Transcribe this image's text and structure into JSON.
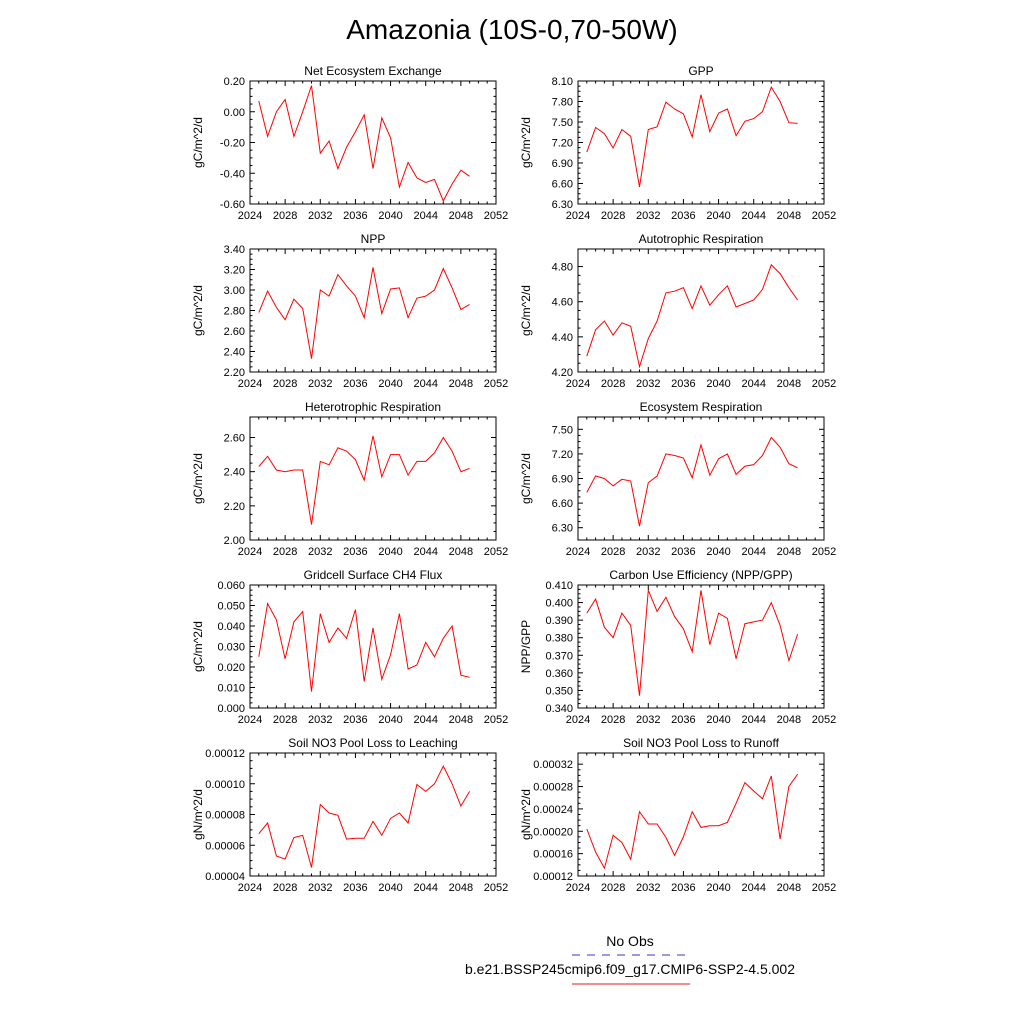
{
  "page_title": "Amazonia (10S-0,70-50W)",
  "legend": {
    "obs_label": "No Obs",
    "obs_color": "#3333cc",
    "model_label": "b.e21.BSSP245cmip6.f09_g17.CMIP6-SSP2-4.5.002",
    "model_color": "#e41a1c"
  },
  "line_color": "#ff0000",
  "chart_data": [
    {
      "type": "line",
      "title": "Net Ecosystem Exchange",
      "ylabel": "gC/m^2/d",
      "xlim": [
        2024,
        2052
      ],
      "xticks": [
        2024,
        2028,
        2032,
        2036,
        2040,
        2044,
        2048,
        2052
      ],
      "ylim": [
        -0.6,
        0.2
      ],
      "yticks": [
        "-0.60",
        "-0.40",
        "-0.20",
        "0.00",
        "0.20"
      ],
      "x": [
        2025,
        2026,
        2027,
        2028,
        2029,
        2030,
        2031,
        2032,
        2033,
        2034,
        2035,
        2036,
        2037,
        2038,
        2039,
        2040,
        2041,
        2042,
        2043,
        2044,
        2045,
        2046,
        2047,
        2048,
        2049
      ],
      "values": [
        0.07,
        -0.16,
        0.0,
        0.08,
        -0.16,
        0.0,
        0.17,
        -0.27,
        -0.19,
        -0.37,
        -0.23,
        -0.13,
        -0.02,
        -0.37,
        -0.04,
        -0.17,
        -0.49,
        -0.33,
        -0.43,
        -0.46,
        -0.44,
        -0.58,
        -0.47,
        -0.38,
        -0.42
      ]
    },
    {
      "type": "line",
      "title": "GPP",
      "ylabel": "gC/m^2/d",
      "xlim": [
        2024,
        2052
      ],
      "xticks": [
        2024,
        2028,
        2032,
        2036,
        2040,
        2044,
        2048,
        2052
      ],
      "ylim": [
        6.3,
        8.1
      ],
      "yticks": [
        "6.30",
        "6.60",
        "6.90",
        "7.20",
        "7.50",
        "7.80",
        "8.10"
      ],
      "x": [
        2025,
        2026,
        2027,
        2028,
        2029,
        2030,
        2031,
        2032,
        2033,
        2034,
        2035,
        2036,
        2037,
        2038,
        2039,
        2040,
        2041,
        2042,
        2043,
        2044,
        2045,
        2046,
        2047,
        2048,
        2049
      ],
      "values": [
        7.06,
        7.42,
        7.33,
        7.12,
        7.39,
        7.29,
        6.55,
        7.39,
        7.43,
        7.79,
        7.69,
        7.62,
        7.28,
        7.9,
        7.36,
        7.63,
        7.69,
        7.3,
        7.51,
        7.55,
        7.65,
        8.01,
        7.8,
        7.49,
        7.48
      ]
    },
    {
      "type": "line",
      "title": "NPP",
      "ylabel": "gC/m^2/d",
      "xlim": [
        2024,
        2052
      ],
      "xticks": [
        2024,
        2028,
        2032,
        2036,
        2040,
        2044,
        2048,
        2052
      ],
      "ylim": [
        2.2,
        3.4
      ],
      "yticks": [
        "2.20",
        "2.40",
        "2.60",
        "2.80",
        "3.00",
        "3.20",
        "3.40"
      ],
      "x": [
        2025,
        2026,
        2027,
        2028,
        2029,
        2030,
        2031,
        2032,
        2033,
        2034,
        2035,
        2036,
        2037,
        2038,
        2039,
        2040,
        2041,
        2042,
        2043,
        2044,
        2045,
        2046,
        2047,
        2048,
        2049
      ],
      "values": [
        2.78,
        2.99,
        2.83,
        2.71,
        2.91,
        2.82,
        2.33,
        3.0,
        2.94,
        3.15,
        3.04,
        2.94,
        2.73,
        3.22,
        2.77,
        3.01,
        3.02,
        2.73,
        2.92,
        2.94,
        3.0,
        3.21,
        3.02,
        2.81,
        2.86
      ]
    },
    {
      "type": "line",
      "title": "Autotrophic Respiration",
      "ylabel": "gC/m^2/d",
      "xlim": [
        2024,
        2052
      ],
      "xticks": [
        2024,
        2028,
        2032,
        2036,
        2040,
        2044,
        2048,
        2052
      ],
      "ylim": [
        4.2,
        4.9
      ],
      "yticks": [
        "4.20",
        "4.40",
        "4.60",
        "4.80"
      ],
      "x": [
        2025,
        2026,
        2027,
        2028,
        2029,
        2030,
        2031,
        2032,
        2033,
        2034,
        2035,
        2036,
        2037,
        2038,
        2039,
        2040,
        2041,
        2042,
        2043,
        2044,
        2045,
        2046,
        2047,
        2048,
        2049
      ],
      "values": [
        4.29,
        4.44,
        4.49,
        4.41,
        4.48,
        4.46,
        4.23,
        4.39,
        4.49,
        4.65,
        4.66,
        4.68,
        4.56,
        4.69,
        4.58,
        4.64,
        4.69,
        4.57,
        4.59,
        4.61,
        4.67,
        4.81,
        4.76,
        4.68,
        4.61
      ]
    },
    {
      "type": "line",
      "title": "Heterotrophic Respiration",
      "ylabel": "gC/m^2/d",
      "xlim": [
        2024,
        2052
      ],
      "xticks": [
        2024,
        2028,
        2032,
        2036,
        2040,
        2044,
        2048,
        2052
      ],
      "ylim": [
        2.0,
        2.72
      ],
      "yticks": [
        "2.00",
        "2.20",
        "2.40",
        "2.60"
      ],
      "x": [
        2025,
        2026,
        2027,
        2028,
        2029,
        2030,
        2031,
        2032,
        2033,
        2034,
        2035,
        2036,
        2037,
        2038,
        2039,
        2040,
        2041,
        2042,
        2043,
        2044,
        2045,
        2046,
        2047,
        2048,
        2049
      ],
      "values": [
        2.43,
        2.49,
        2.41,
        2.4,
        2.41,
        2.41,
        2.09,
        2.46,
        2.44,
        2.54,
        2.52,
        2.47,
        2.35,
        2.61,
        2.37,
        2.5,
        2.5,
        2.38,
        2.46,
        2.46,
        2.51,
        2.6,
        2.52,
        2.4,
        2.42
      ]
    },
    {
      "type": "line",
      "title": "Ecosystem Respiration",
      "ylabel": "gC/m^2/d",
      "xlim": [
        2024,
        2052
      ],
      "xticks": [
        2024,
        2028,
        2032,
        2036,
        2040,
        2044,
        2048,
        2052
      ],
      "ylim": [
        6.15,
        7.65
      ],
      "yticks": [
        "6.30",
        "6.60",
        "6.90",
        "7.20",
        "7.50"
      ],
      "x": [
        2025,
        2026,
        2027,
        2028,
        2029,
        2030,
        2031,
        2032,
        2033,
        2034,
        2035,
        2036,
        2037,
        2038,
        2039,
        2040,
        2041,
        2042,
        2043,
        2044,
        2045,
        2046,
        2047,
        2048,
        2049
      ],
      "values": [
        6.73,
        6.93,
        6.9,
        6.81,
        6.89,
        6.87,
        6.32,
        6.85,
        6.93,
        7.2,
        7.18,
        7.15,
        6.91,
        7.31,
        6.94,
        7.14,
        7.2,
        6.95,
        7.05,
        7.07,
        7.18,
        7.4,
        7.28,
        7.08,
        7.03
      ]
    },
    {
      "type": "line",
      "title": "Gridcell Surface CH4 Flux",
      "ylabel": "gC/m^2/d",
      "xlim": [
        2024,
        2052
      ],
      "xticks": [
        2024,
        2028,
        2032,
        2036,
        2040,
        2044,
        2048,
        2052
      ],
      "ylim": [
        0.0,
        0.06
      ],
      "yticks": [
        "0.000",
        "0.010",
        "0.020",
        "0.030",
        "0.040",
        "0.050",
        "0.060"
      ],
      "x": [
        2025,
        2026,
        2027,
        2028,
        2029,
        2030,
        2031,
        2032,
        2033,
        2034,
        2035,
        2036,
        2037,
        2038,
        2039,
        2040,
        2041,
        2042,
        2043,
        2044,
        2045,
        2046,
        2047,
        2048,
        2049
      ],
      "values": [
        0.025,
        0.051,
        0.043,
        0.024,
        0.042,
        0.047,
        0.008,
        0.046,
        0.032,
        0.039,
        0.034,
        0.048,
        0.013,
        0.039,
        0.014,
        0.026,
        0.046,
        0.019,
        0.021,
        0.032,
        0.025,
        0.034,
        0.04,
        0.016,
        0.015
      ]
    },
    {
      "type": "line",
      "title": "Carbon Use Efficiency (NPP/GPP)",
      "ylabel": "NPP/GPP",
      "xlim": [
        2024,
        2052
      ],
      "xticks": [
        2024,
        2028,
        2032,
        2036,
        2040,
        2044,
        2048,
        2052
      ],
      "ylim": [
        0.34,
        0.41
      ],
      "yticks": [
        "0.340",
        "0.350",
        "0.360",
        "0.370",
        "0.380",
        "0.390",
        "0.400",
        "0.410"
      ],
      "x": [
        2025,
        2026,
        2027,
        2028,
        2029,
        2030,
        2031,
        2032,
        2033,
        2034,
        2035,
        2036,
        2037,
        2038,
        2039,
        2040,
        2041,
        2042,
        2043,
        2044,
        2045,
        2046,
        2047,
        2048,
        2049
      ],
      "values": [
        0.394,
        0.402,
        0.386,
        0.38,
        0.394,
        0.387,
        0.347,
        0.407,
        0.395,
        0.403,
        0.392,
        0.385,
        0.372,
        0.407,
        0.376,
        0.394,
        0.391,
        0.368,
        0.388,
        0.389,
        0.39,
        0.4,
        0.387,
        0.367,
        0.382
      ]
    },
    {
      "type": "line",
      "title": "Soil NO3 Pool Loss to Leaching",
      "ylabel": "gN/m^2/d",
      "xlim": [
        2024,
        2052
      ],
      "xticks": [
        2024,
        2028,
        2032,
        2036,
        2040,
        2044,
        2048,
        2052
      ],
      "ylim": [
        4e-05,
        0.00012
      ],
      "yticks": [
        "0.00004",
        "0.00006",
        "0.00008",
        "0.00010",
        "0.00012"
      ],
      "x": [
        2025,
        2026,
        2027,
        2028,
        2029,
        2030,
        2031,
        2032,
        2033,
        2034,
        2035,
        2036,
        2037,
        2038,
        2039,
        2040,
        2041,
        2042,
        2043,
        2044,
        2045,
        2046,
        2047,
        2048,
        2049
      ],
      "values": [
        6.75e-05,
        7.45e-05,
        5.3e-05,
        5.1e-05,
        6.5e-05,
        6.65e-05,
        4.55e-05,
        8.65e-05,
        8.1e-05,
        7.95e-05,
        6.4e-05,
        6.45e-05,
        6.45e-05,
        7.55e-05,
        6.65e-05,
        7.75e-05,
        8.1e-05,
        7.45e-05,
        9.95e-05,
        9.5e-05,
        0.0001,
        0.0001115,
        0.0001,
        8.55e-05,
        9.5e-05
      ]
    },
    {
      "type": "line",
      "title": "Soil NO3 Pool Loss to Runoff",
      "ylabel": "gN/m^2/d",
      "xlim": [
        2024,
        2052
      ],
      "xticks": [
        2024,
        2028,
        2032,
        2036,
        2040,
        2044,
        2048,
        2052
      ],
      "ylim": [
        0.00012,
        0.00034
      ],
      "yticks": [
        "0.00012",
        "0.00016",
        "0.00020",
        "0.00024",
        "0.00028",
        "0.00032"
      ],
      "x": [
        2025,
        2026,
        2027,
        2028,
        2029,
        2030,
        2031,
        2032,
        2033,
        2034,
        2035,
        2036,
        2037,
        2038,
        2039,
        2040,
        2041,
        2042,
        2043,
        2044,
        2045,
        2046,
        2047,
        2048,
        2049
      ],
      "values": [
        0.000204,
        0.000163,
        0.000134,
        0.000193,
        0.00018,
        0.00015,
        0.000235,
        0.000213,
        0.000213,
        0.000189,
        0.000157,
        0.00019,
        0.000235,
        0.000207,
        0.00021,
        0.00021,
        0.000216,
        0.00025,
        0.000287,
        0.000272,
        0.000258,
        0.000299,
        0.000186,
        0.00028,
        0.000302
      ]
    }
  ]
}
